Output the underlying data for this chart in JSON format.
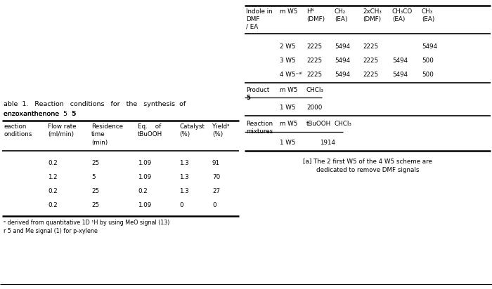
{
  "bg_color": "#ffffff",
  "left_table": {
    "title_line1": "able  1.   Reaction   conditions   for   the   synthesis  of",
    "title_line2": "enzoxanthenone  5",
    "col_headers": [
      "eaction\nonditions",
      "Flow rate\n(ml/min)",
      "Residence\ntime\n(min)",
      "Eq.    of\ntBuOOH",
      "Catalyst\n(%)",
      "Yieldᵃ\n(%)"
    ],
    "rows": [
      [
        "",
        "0.2",
        "25",
        "1.09",
        "1.3",
        "91"
      ],
      [
        "",
        "1.2",
        "5",
        "1.09",
        "1.3",
        "70"
      ],
      [
        "",
        "0.2",
        "25",
        "0.2",
        "1.3",
        "27"
      ],
      [
        "",
        "0.2",
        "25",
        "1.09",
        "0",
        "0"
      ]
    ],
    "footnote1": "ᵃ derived from quantitative 1D ¹H by using MeO signal (13)",
    "footnote2": "r 5 and Me signal (1) for p-xylene"
  },
  "right_table": {
    "col_headers_line1": [
      "Indole in",
      "m W5",
      "Hᴺ",
      "CH₂",
      "2xCH₃",
      "CH₃CO",
      "CH₃"
    ],
    "col_headers_line2": [
      "DMF",
      "",
      "(DMF)",
      "(EA)",
      "(DMF)",
      "(EA)",
      "(EA)"
    ],
    "col_headers_line3": [
      "/ EA",
      "",
      "",
      "",
      "",
      "",
      ""
    ],
    "s1_rows": [
      [
        "2 W5",
        "2225",
        "5494",
        "2225",
        "",
        "5494",
        ""
      ],
      [
        "3 W5",
        "2225",
        "5494",
        "2225",
        "5494",
        "500"
      ],
      [
        "4 W5⁻ᵃˡ",
        "2225",
        "5494",
        "2225",
        "5494",
        "500"
      ]
    ],
    "s2_label": "Product",
    "s2_label2": "5",
    "s2_header": [
      "m W5",
      "CHCl₃"
    ],
    "s2_row": [
      "1 W5",
      "2000"
    ],
    "s3_label": "Reaction",
    "s3_label2": "mixtures",
    "s3_header": [
      "m W5",
      "tBuOOH",
      "CHCl₃"
    ],
    "s3_row": [
      "1 W5",
      "1914"
    ],
    "footnote_line1": "[a] The 2 first W5 of the 4 W5 scheme are",
    "footnote_line2": "dedicated to remove DMF signals"
  }
}
